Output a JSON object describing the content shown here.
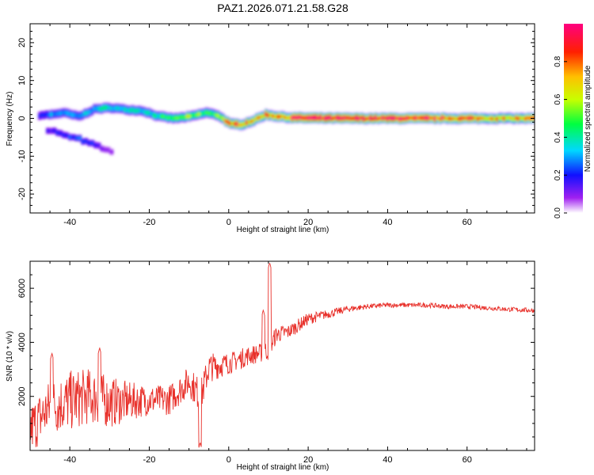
{
  "title": "PAZ1.2026.071.21.58.G28",
  "chart_data": [
    {
      "type": "heatmap",
      "xlabel": "Height of straight line (km)",
      "ylabel": "Frequency (Hz)",
      "xlim": [
        -50,
        77
      ],
      "ylim": [
        -25,
        25
      ],
      "xticks": [
        -40,
        -20,
        0,
        20,
        40,
        60
      ],
      "yticks": [
        -20,
        -10,
        0,
        10,
        20
      ],
      "colorbar": {
        "label": "Normalized spectral amplitude",
        "range": [
          0,
          1
        ],
        "ticks": [
          "0.0",
          "0.2",
          "0.4",
          "0.6",
          "0.8"
        ]
      },
      "ridge": {
        "x": [
          -48,
          -45,
          -42,
          -38,
          -34,
          -30,
          -26,
          -22,
          -18,
          -14,
          -10,
          -6,
          -3,
          0,
          3,
          6,
          9,
          12,
          15,
          20,
          30,
          40,
          50,
          60,
          77
        ],
        "freq": [
          0.8,
          1.0,
          1.5,
          0.5,
          2.5,
          2.8,
          2.3,
          2.0,
          0.5,
          0.0,
          0.5,
          1.5,
          0.8,
          -1.5,
          -1.6,
          -0.5,
          1.0,
          0.5,
          0.2,
          0.1,
          0.0,
          0.0,
          0.0,
          0.0,
          0.0
        ],
        "amp": [
          0.2,
          0.3,
          0.3,
          0.3,
          0.35,
          0.4,
          0.35,
          0.35,
          0.4,
          0.5,
          0.55,
          0.5,
          0.55,
          0.8,
          0.85,
          0.7,
          0.75,
          0.8,
          0.85,
          0.95,
          0.97,
          0.97,
          0.9,
          0.8,
          0.7
        ]
      },
      "branch": {
        "x": [
          -46,
          -44,
          -42,
          -40,
          -38,
          -36,
          -34,
          -32,
          -30
        ],
        "freq": [
          -3,
          -3.5,
          -4.5,
          -5,
          -5.5,
          -6.5,
          -7,
          -8,
          -9
        ],
        "amp": [
          0.15,
          0.2,
          0.2,
          0.25,
          0.25,
          0.2,
          0.2,
          0.12,
          0.08
        ]
      }
    },
    {
      "type": "line",
      "xlabel": "Height of straight line (km)",
      "ylabel": "SNR (10 * v/v)",
      "xlim": [
        -50,
        77
      ],
      "ylim": [
        0,
        7000
      ],
      "xticks": [
        -40,
        -20,
        0,
        20,
        40,
        60
      ],
      "yticks": [
        2000,
        4000,
        6000
      ],
      "color": "#e8302a",
      "series": [
        {
          "name": "SNR",
          "x": [
            -50,
            -45,
            -40,
            -35,
            -30,
            -25,
            -20,
            -15,
            -10,
            -7,
            -5,
            0,
            5,
            8,
            10,
            12,
            15,
            20,
            25,
            30,
            35,
            40,
            45,
            50,
            55,
            60,
            65,
            70,
            77
          ],
          "y": [
            500,
            1300,
            1500,
            1700,
            1500,
            1600,
            1700,
            1700,
            2400,
            1800,
            2900,
            3100,
            3400,
            3500,
            3600,
            4200,
            4300,
            4800,
            5000,
            5200,
            5300,
            5350,
            5350,
            5350,
            5300,
            5300,
            5250,
            5200,
            5150
          ],
          "noise": [
            1200,
            1300,
            1400,
            1300,
            1200,
            900,
            700,
            700,
            700,
            800,
            700,
            500,
            450,
            450,
            500,
            400,
            350,
            280,
            200,
            150,
            120,
            110,
            110,
            110,
            110,
            110,
            110,
            110,
            110
          ]
        }
      ],
      "spikes": [
        {
          "x": 10.3,
          "y": 6950
        },
        {
          "x": 8.7,
          "y": 5200
        },
        {
          "x": -7.2,
          "y": 300
        },
        {
          "x": -32.5,
          "y": 3800
        },
        {
          "x": -44.5,
          "y": 3600
        }
      ]
    }
  ]
}
